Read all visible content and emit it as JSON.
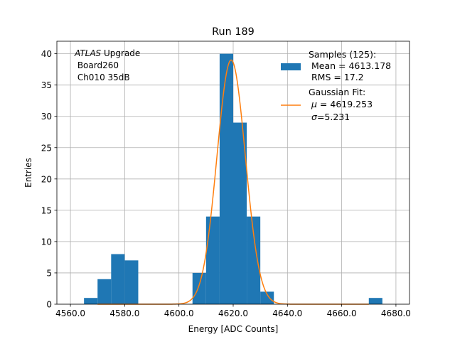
{
  "chart_data": {
    "type": "bar",
    "title": "Run 189",
    "xlabel": "Energy [ADC Counts]",
    "ylabel": "Entries",
    "xlim": [
      4555,
      4685
    ],
    "ylim": [
      0,
      42
    ],
    "grid": true,
    "x_ticks": [
      4560,
      4580,
      4600,
      4620,
      4640,
      4660,
      4680
    ],
    "x_tick_labels": [
      "4560.0",
      "4580.0",
      "4600.0",
      "4620.0",
      "4640.0",
      "4660.0",
      "4680.0"
    ],
    "y_ticks": [
      0,
      5,
      10,
      15,
      20,
      25,
      30,
      35,
      40
    ],
    "y_tick_labels": [
      "0",
      "5",
      "10",
      "15",
      "20",
      "25",
      "30",
      "35",
      "40"
    ],
    "histogram": {
      "color": "#1f77b4",
      "bin_width": 5,
      "bins": [
        {
          "left": 4565,
          "count": 1
        },
        {
          "left": 4570,
          "count": 4
        },
        {
          "left": 4575,
          "count": 8
        },
        {
          "left": 4580,
          "count": 7
        },
        {
          "left": 4605,
          "count": 5
        },
        {
          "left": 4610,
          "count": 14
        },
        {
          "left": 4615,
          "count": 40
        },
        {
          "left": 4620,
          "count": 29
        },
        {
          "left": 4625,
          "count": 14
        },
        {
          "left": 4630,
          "count": 2
        },
        {
          "left": 4670,
          "count": 1
        }
      ]
    },
    "fit": {
      "color": "#ff7f0e",
      "mu": 4619.253,
      "sigma": 5.231,
      "amplitude": 39
    },
    "annotation": {
      "italic": "ATLAS",
      "rest": " Upgrade",
      "line2": " Board260",
      "line3": " Ch010 35dB"
    },
    "legend": {
      "placement": "top-right",
      "samples": {
        "line1": "Samples (125):",
        "line2": " Mean = 4613.178",
        "line3": " RMS = 17.2"
      },
      "gaussian": {
        "line1": "Gaussian Fit:",
        "mu_line": " = 4619.253",
        "sigma_line": "=5.231"
      }
    }
  }
}
